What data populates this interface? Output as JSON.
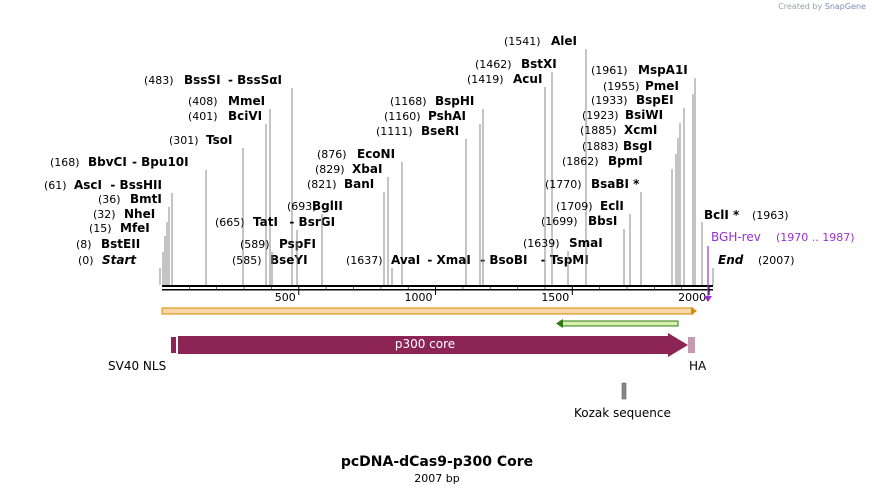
{
  "credit": {
    "prefix": "Created by",
    "brand": "SnapGene"
  },
  "plasmid": {
    "name": "pcDNA-dCas9-p300 Core",
    "length_label": "2007 bp",
    "length_bp": 2007
  },
  "ruler": {
    "ticks": [
      500,
      1000,
      1500,
      2000
    ]
  },
  "sites_left": [
    {
      "pos": "(0)",
      "name": "Start",
      "bp": 0,
      "style": "italic"
    },
    {
      "pos": "(8)",
      "name": "BstEII",
      "bp": 8
    },
    {
      "pos": "(15)",
      "name": "MfeI",
      "bp": 15
    },
    {
      "pos": "(32)",
      "name": "NheI",
      "bp": 32
    },
    {
      "pos": "(36)",
      "name": "BmtI",
      "bp": 36
    },
    {
      "pos": "(61)",
      "name": "AscI",
      "name2": "BssHII",
      "bp": 61
    },
    {
      "pos": "(168)",
      "name": "BbvCI",
      "name2": "Bpu10I",
      "bp": 168
    },
    {
      "pos": "(301)",
      "name": "TsoI",
      "bp": 301
    },
    {
      "pos": "(401)",
      "name": "BciVI",
      "bp": 401
    },
    {
      "pos": "(408)",
      "name": "MmeI",
      "bp": 408
    },
    {
      "pos": "(483)",
      "name": "BssSI",
      "name2": "BssSαI",
      "bp": 483
    }
  ],
  "sites_mid": [
    {
      "pos": "(585)",
      "name": "BseYI",
      "bp": 585
    },
    {
      "pos": "(589)",
      "name": "PspFI",
      "bp": 589
    },
    {
      "pos": "(665)",
      "name": "TatI",
      "name2": "BsrGI",
      "bp": 665
    },
    {
      "pos": "(693)",
      "name": "BglII",
      "bp": 693
    },
    {
      "pos": "(821)",
      "name": "BanI",
      "bp": 821
    },
    {
      "pos": "(829)",
      "name": "XbaI",
      "bp": 829
    },
    {
      "pos": "(876)",
      "name": "EcoNI",
      "bp": 876
    },
    {
      "pos": "(1637)",
      "name": "AvaI",
      "name2": "XmaI",
      "name3": "BsoBI",
      "name4": "TspMI",
      "bp": 1637
    },
    {
      "pos": "(1111)",
      "name": "BseRI",
      "bp": 1111
    },
    {
      "pos": "(1160)",
      "name": "PshAI",
      "bp": 1160
    },
    {
      "pos": "(1168)",
      "name": "BspHI",
      "bp": 1168
    }
  ],
  "sites_right": [
    {
      "pos": "(1419)",
      "name": "AcuI",
      "bp": 1419
    },
    {
      "pos": "(1462)",
      "name": "BstXI",
      "bp": 1462
    },
    {
      "pos": "(1541)",
      "name": "AleI",
      "bp": 1541
    },
    {
      "pos": "(1639)",
      "name": "SmaI",
      "bp": 1639
    },
    {
      "pos": "(1699)",
      "name": "BbsI",
      "bp": 1699
    },
    {
      "pos": "(1709)",
      "name": "EclI",
      "bp": 1709
    },
    {
      "pos": "(1770)",
      "name": "BsaBI *",
      "bp": 1770
    },
    {
      "pos": "(1862)",
      "name": "BpmI",
      "bp": 1862
    },
    {
      "pos": "(1883)",
      "name": "BsgI",
      "bp": 1883
    },
    {
      "pos": "(1885)",
      "name": "XcmI",
      "bp": 1885
    },
    {
      "pos": "(1923)",
      "name": "BsiWI",
      "bp": 1923
    },
    {
      "pos": "(1933)",
      "name": "BspEI",
      "bp": 1933
    },
    {
      "pos": "(1955)",
      "name": "PmeI",
      "bp": 1955
    },
    {
      "pos": "(1961)",
      "name": "MspA1I",
      "bp": 1961
    }
  ],
  "sites_end": [
    {
      "name": "BclI *",
      "pos": "(1963)",
      "bp": 1963
    },
    {
      "name": "End",
      "pos": "(2007)",
      "bp": 2007,
      "style": "italic"
    }
  ],
  "primer": {
    "name": "BGH-rev",
    "range": "(1970 .. 1987)",
    "color": "#9b30d0"
  },
  "features": {
    "sv40": "SV40 NLS",
    "p300": "p300 core",
    "ha": "HA",
    "kozak": "Kozak sequence"
  },
  "colors": {
    "p300": "#8c2456",
    "tag": "#c79aaf",
    "orf_fill": "#f5d7a8",
    "orf_line": "#d98a00",
    "orf2_fill": "#d6f0b0",
    "orf2_line": "#2f7a10"
  }
}
